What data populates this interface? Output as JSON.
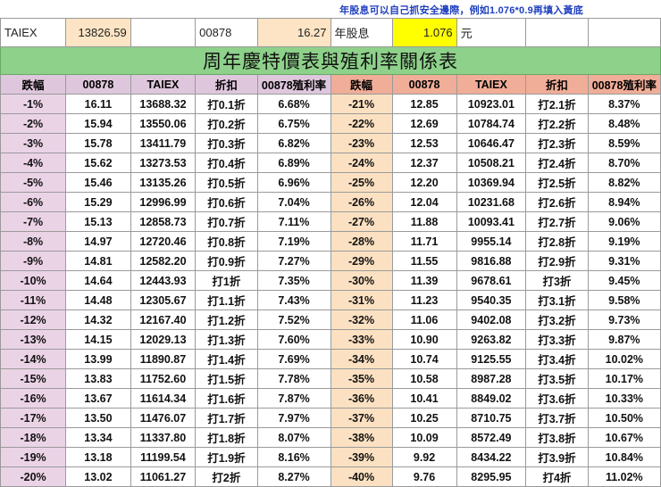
{
  "note": "年股息可以自己抓安全邊際，例如1.076*0.9再填入黃底",
  "inputs": {
    "taiex_label": "TAIEX",
    "taiex_value": "13826.59",
    "stock_label": "00878",
    "stock_price": "16.27",
    "dividend_label": "年股息",
    "dividend_value": "1.076",
    "unit": "元"
  },
  "title": "周年慶特價表與殖利率關係表",
  "headers": [
    "跌幅",
    "00878",
    "TAIEX",
    "折扣",
    "00878殖利率",
    "跌幅",
    "00878",
    "TAIEX",
    "折扣",
    "00878殖利率"
  ],
  "rows": [
    [
      "-1%",
      "16.11",
      "13688.32",
      "打0.1折",
      "6.68%",
      "-21%",
      "12.85",
      "10923.01",
      "打2.1折",
      "8.37%"
    ],
    [
      "-2%",
      "15.94",
      "13550.06",
      "打0.2折",
      "6.75%",
      "-22%",
      "12.69",
      "10784.74",
      "打2.2折",
      "8.48%"
    ],
    [
      "-3%",
      "15.78",
      "13411.79",
      "打0.3折",
      "6.82%",
      "-23%",
      "12.53",
      "10646.47",
      "打2.3折",
      "8.59%"
    ],
    [
      "-4%",
      "15.62",
      "13273.53",
      "打0.4折",
      "6.89%",
      "-24%",
      "12.37",
      "10508.21",
      "打2.4折",
      "8.70%"
    ],
    [
      "-5%",
      "15.46",
      "13135.26",
      "打0.5折",
      "6.96%",
      "-25%",
      "12.20",
      "10369.94",
      "打2.5折",
      "8.82%"
    ],
    [
      "-6%",
      "15.29",
      "12996.99",
      "打0.6折",
      "7.04%",
      "-26%",
      "12.04",
      "10231.68",
      "打2.6折",
      "8.94%"
    ],
    [
      "-7%",
      "15.13",
      "12858.73",
      "打0.7折",
      "7.11%",
      "-27%",
      "11.88",
      "10093.41",
      "打2.7折",
      "9.06%"
    ],
    [
      "-8%",
      "14.97",
      "12720.46",
      "打0.8折",
      "7.19%",
      "-28%",
      "11.71",
      "9955.14",
      "打2.8折",
      "9.19%"
    ],
    [
      "-9%",
      "14.81",
      "12582.20",
      "打0.9折",
      "7.27%",
      "-29%",
      "11.55",
      "9816.88",
      "打2.9折",
      "9.31%"
    ],
    [
      "-10%",
      "14.64",
      "12443.93",
      "打1折",
      "7.35%",
      "-30%",
      "11.39",
      "9678.61",
      "打3折",
      "9.45%"
    ],
    [
      "-11%",
      "14.48",
      "12305.67",
      "打1.1折",
      "7.43%",
      "-31%",
      "11.23",
      "9540.35",
      "打3.1折",
      "9.58%"
    ],
    [
      "-12%",
      "14.32",
      "12167.40",
      "打1.2折",
      "7.52%",
      "-32%",
      "11.06",
      "9402.08",
      "打3.2折",
      "9.73%"
    ],
    [
      "-13%",
      "14.15",
      "12029.13",
      "打1.3折",
      "7.60%",
      "-33%",
      "10.90",
      "9263.82",
      "打3.3折",
      "9.87%"
    ],
    [
      "-14%",
      "13.99",
      "11890.87",
      "打1.4折",
      "7.69%",
      "-34%",
      "10.74",
      "9125.55",
      "打3.4折",
      "10.02%"
    ],
    [
      "-15%",
      "13.83",
      "11752.60",
      "打1.5折",
      "7.78%",
      "-35%",
      "10.58",
      "8987.28",
      "打3.5折",
      "10.17%"
    ],
    [
      "-16%",
      "13.67",
      "11614.34",
      "打1.6折",
      "7.87%",
      "-36%",
      "10.41",
      "8849.02",
      "打3.6折",
      "10.33%"
    ],
    [
      "-17%",
      "13.50",
      "11476.07",
      "打1.7折",
      "7.97%",
      "-37%",
      "10.25",
      "8710.75",
      "打3.7折",
      "10.50%"
    ],
    [
      "-18%",
      "13.34",
      "11337.80",
      "打1.8折",
      "8.07%",
      "-38%",
      "10.09",
      "8572.49",
      "打3.8折",
      "10.67%"
    ],
    [
      "-19%",
      "13.18",
      "11199.54",
      "打1.9折",
      "8.16%",
      "-39%",
      "9.92",
      "8434.22",
      "打3.9折",
      "10.84%"
    ],
    [
      "-20%",
      "13.02",
      "11061.27",
      "打2折",
      "8.27%",
      "-40%",
      "9.76",
      "8295.95",
      "打4折",
      "11.02%"
    ]
  ],
  "colors": {
    "title_bg": "#8ed18a",
    "header_left": "#dec7dc",
    "header_right": "#f0ad98",
    "drop_left_bg": "#ebd3e6",
    "drop_right_bg": "#fbe1c2",
    "input_peach": "#fde4c4",
    "input_yellow": "#ffff00",
    "note_color": "#1f3fbf"
  }
}
